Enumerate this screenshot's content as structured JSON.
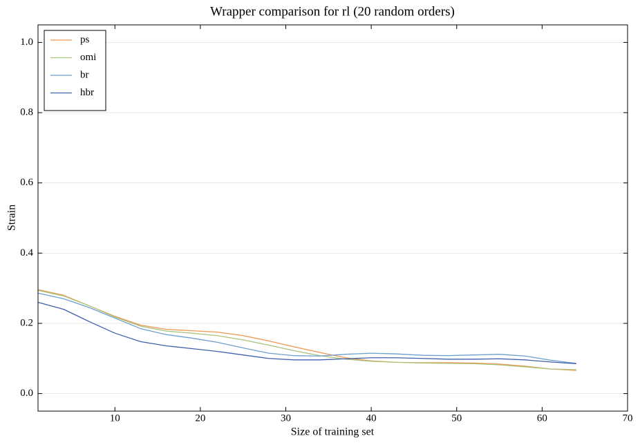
{
  "chart_data": {
    "type": "line",
    "title": "Wrapper comparison for rl (20 random orders)",
    "x_label": "Size of training set",
    "y_label": "Strain",
    "x": [
      1,
      4,
      7,
      10,
      13,
      16,
      19,
      22,
      25,
      28,
      31,
      34,
      37,
      40,
      43,
      46,
      49,
      52,
      55,
      58,
      61,
      64
    ],
    "series": [
      {
        "name": "ps",
        "color": "#f0964f",
        "values": [
          0.296,
          0.28,
          0.25,
          0.22,
          0.195,
          0.183,
          0.179,
          0.175,
          0.165,
          0.15,
          0.133,
          0.117,
          0.102,
          0.093,
          0.089,
          0.088,
          0.088,
          0.087,
          0.084,
          0.078,
          0.07,
          0.066
        ]
      },
      {
        "name": "omi",
        "color": "#a8c47a",
        "values": [
          0.294,
          0.278,
          0.25,
          0.218,
          0.192,
          0.178,
          0.172,
          0.165,
          0.153,
          0.138,
          0.122,
          0.108,
          0.098,
          0.092,
          0.089,
          0.087,
          0.086,
          0.085,
          0.082,
          0.076,
          0.07,
          0.068
        ]
      },
      {
        "name": "br",
        "color": "#6a9fcf",
        "values": [
          0.286,
          0.27,
          0.245,
          0.215,
          0.185,
          0.168,
          0.158,
          0.146,
          0.13,
          0.115,
          0.108,
          0.107,
          0.112,
          0.115,
          0.113,
          0.109,
          0.108,
          0.11,
          0.112,
          0.107,
          0.095,
          0.086
        ]
      },
      {
        "name": "hbr",
        "color": "#3f5fae",
        "values": [
          0.26,
          0.24,
          0.205,
          0.172,
          0.148,
          0.136,
          0.128,
          0.12,
          0.11,
          0.1,
          0.096,
          0.096,
          0.099,
          0.102,
          0.102,
          0.1,
          0.098,
          0.098,
          0.099,
          0.096,
          0.09,
          0.085
        ]
      }
    ],
    "xlim": [
      1,
      70
    ],
    "xticks": [
      10,
      20,
      30,
      40,
      50,
      60,
      70
    ],
    "ylim": [
      -0.05,
      1.05
    ],
    "yticks": [
      {
        "value": 0,
        "label": "0.0"
      },
      0.2,
      0.4,
      0.6,
      0.8,
      {
        "value": 1,
        "label": "1.0"
      }
    ],
    "grid": true,
    "legend": "upper-left"
  }
}
